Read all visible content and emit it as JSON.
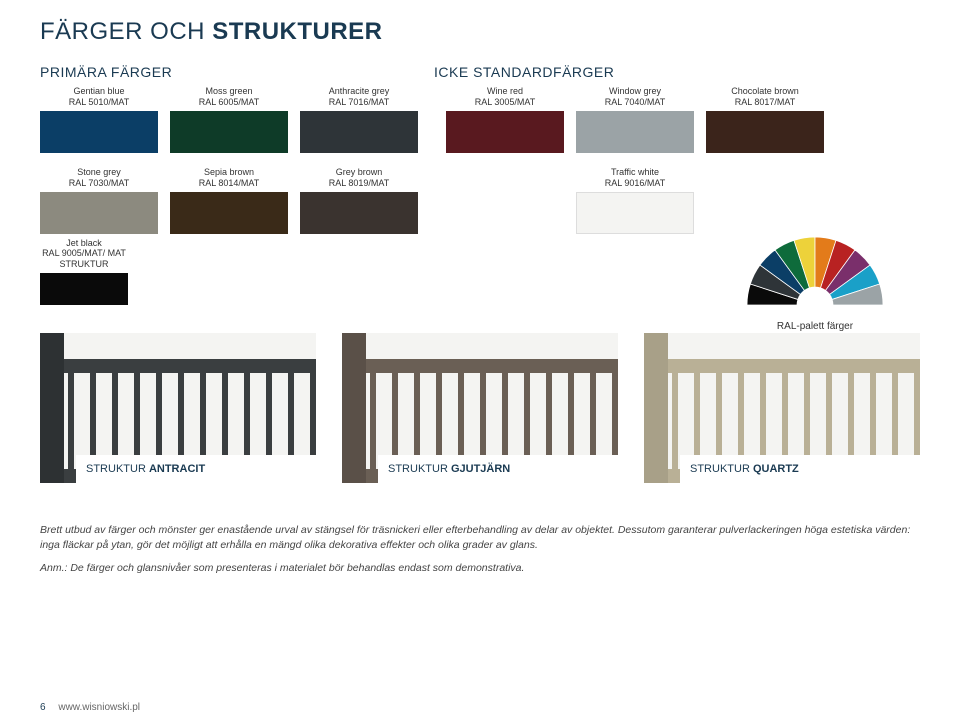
{
  "title_thin": "FÄRGER OCH ",
  "title_bold": "STRUKTURER",
  "section_primary": "PRIMÄRA FÄRGER",
  "section_nonstd": "ICKE STANDARDFÄRGER",
  "row1": [
    {
      "name": "Gentian blue",
      "code": "RAL 5010/MAT",
      "hex": "#0b3e66"
    },
    {
      "name": "Moss green",
      "code": "RAL 6005/MAT",
      "hex": "#0e3b28"
    },
    {
      "name": "Anthracite grey",
      "code": "RAL 7016/MAT",
      "hex": "#2e3438"
    },
    {
      "name": "Wine red",
      "code": "RAL 3005/MAT",
      "hex": "#59191f"
    },
    {
      "name": "Window grey",
      "code": "RAL 7040/MAT",
      "hex": "#9ba3a6"
    },
    {
      "name": "Chocolate brown",
      "code": "RAL 8017/MAT",
      "hex": "#3b241b"
    }
  ],
  "row2": [
    {
      "name": "Stone grey",
      "code": "RAL 7030/MAT",
      "hex": "#8c8a7f"
    },
    {
      "name": "Sepia brown",
      "code": "RAL 8014/MAT",
      "hex": "#3a2a18"
    },
    {
      "name": "Grey brown",
      "code": "RAL 8019/MAT",
      "hex": "#3a332f"
    },
    {
      "name": "Traffic white",
      "code": "RAL 9016/MAT",
      "hex": "#f4f4f2"
    }
  ],
  "row3": [
    {
      "name": "Jet black",
      "code": "RAL 9005/MAT/\nMAT STRUKTUR",
      "hex": "#0a0a0a"
    }
  ],
  "fan_label": "RAL-palett färger",
  "fan_colors": [
    "#0a0a0a",
    "#2e3438",
    "#0b3e66",
    "#0e6b3b",
    "#edd23a",
    "#e37b1a",
    "#b82222",
    "#7a2f6b",
    "#1aa0c8",
    "#9ba3a6"
  ],
  "fences": [
    {
      "caption_thin": "STRUKTUR ",
      "caption_bold": "ANTRACIT",
      "color": "#3a3e40",
      "post": "#2d3133"
    },
    {
      "caption_thin": "STRUKTUR ",
      "caption_bold": "GJUTJÄRN",
      "color": "#6a5f55",
      "post": "#5a5048"
    },
    {
      "caption_thin": "STRUKTUR ",
      "caption_bold": "QUARTZ",
      "color": "#b9b096",
      "post": "#a8a088"
    }
  ],
  "body": "Brett utbud av färger och mönster ger enastående urval av stängsel för träsnickeri eller efterbehandling av delar av objektet. Dessutom garanterar pulverlackeringen höga estetiska värden: inga fläckar på ytan, gör det möjligt att erhålla en mängd olika dekorativa effekter och olika grader av glans.",
  "note": "Anm.: De färger och glansnivåer som presenteras i materialet bör behandlas endast som demonstrativa.",
  "page_no": "6",
  "url": "www.wisniowski.pl"
}
